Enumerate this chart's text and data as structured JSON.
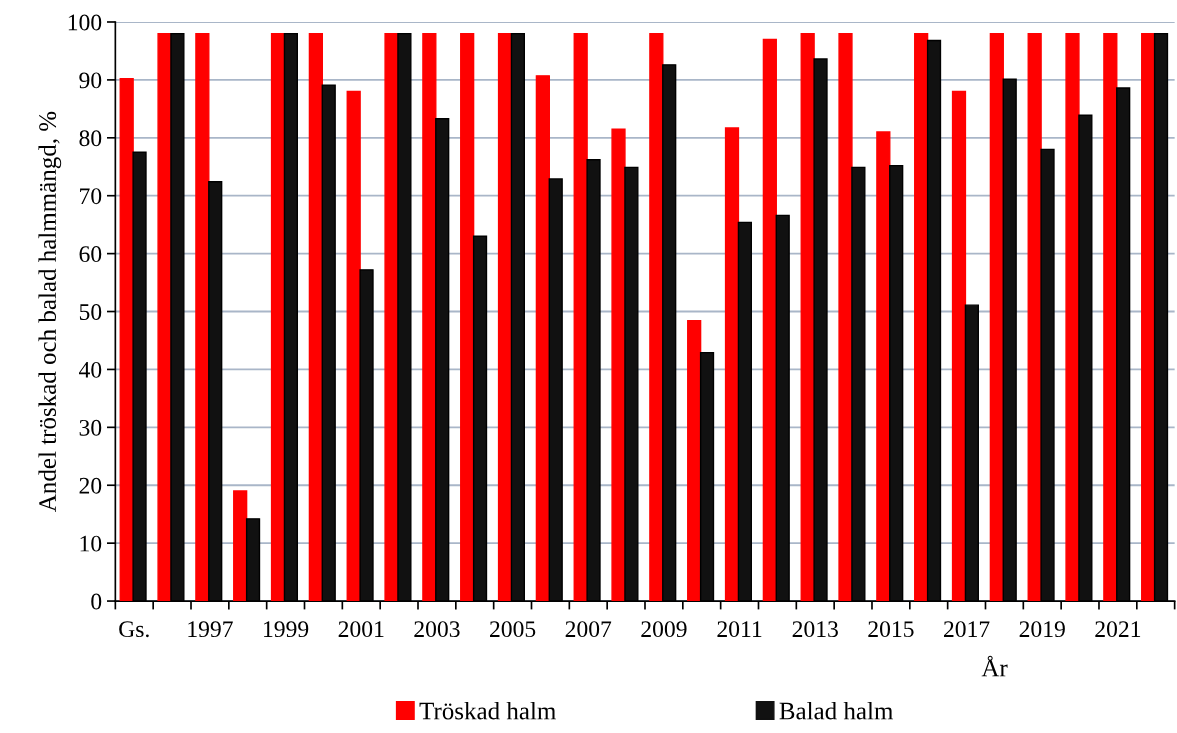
{
  "chart_data": {
    "type": "bar",
    "categories": [
      "Gs.",
      null,
      "1997",
      null,
      "1999",
      null,
      "2001",
      null,
      "2003",
      null,
      "2005",
      null,
      "2007",
      null,
      "2009",
      null,
      "2011",
      null,
      "2013",
      null,
      "2015",
      null,
      "2017",
      null,
      "2019",
      null,
      "2021",
      null
    ],
    "series": [
      {
        "name": "Tröskad halm",
        "color": "#ff0000",
        "values": [
          90.2,
          98,
          98,
          19,
          98,
          98,
          88,
          98,
          98,
          98,
          98,
          90.7,
          98,
          81.5,
          98,
          48.4,
          81.7,
          97,
          98,
          98,
          81,
          98,
          88,
          98,
          98,
          98,
          98,
          98
        ]
      },
      {
        "name": "Balad halm",
        "color": "#111111",
        "values": [
          77.5,
          98,
          72.4,
          14.2,
          98,
          89.1,
          57.2,
          98,
          83.3,
          63,
          98,
          72.9,
          76.2,
          74.9,
          92.6,
          42.9,
          65.4,
          66.6,
          93.6,
          74.9,
          75.2,
          96.8,
          51.1,
          90.1,
          78,
          83.9,
          88.6,
          98
        ]
      }
    ],
    "xlabel": "År",
    "ylabel": "Andel tröskad och balad halmmängd, %",
    "ylim": [
      0,
      100
    ],
    "yticks": [
      0,
      10,
      20,
      30,
      40,
      50,
      60,
      70,
      80,
      90,
      100
    ],
    "grid": "y",
    "legend": "bottom"
  }
}
